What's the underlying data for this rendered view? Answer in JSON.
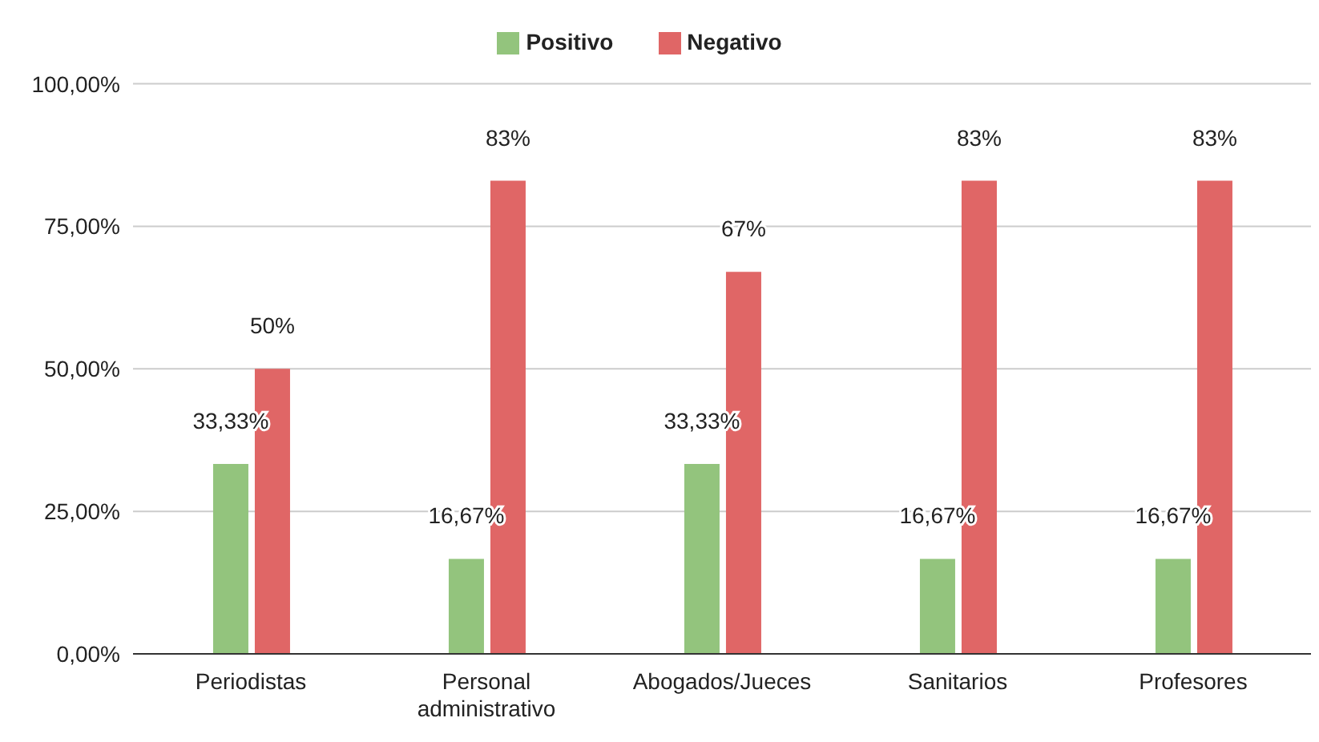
{
  "chart_data": {
    "type": "bar",
    "categories": [
      "Periodistas",
      "Personal administrativo",
      "Abogados/Jueces",
      "Sanitarios",
      "Profesores"
    ],
    "series": [
      {
        "name": "Positivo",
        "color": "#93c47d",
        "values": [
          33.33,
          16.67,
          33.33,
          16.67,
          16.67
        ],
        "value_labels": [
          "33,33%",
          "16,67%",
          "33,33%",
          "16,67%",
          "16,67%"
        ]
      },
      {
        "name": "Negativo",
        "color": "#e06666",
        "values": [
          50,
          83,
          67,
          83,
          83
        ],
        "value_labels": [
          "50%",
          "83%",
          "67%",
          "83%",
          "83%"
        ]
      }
    ],
    "ylim": [
      0,
      100
    ],
    "yticks": [
      {
        "value": 0,
        "label": "0,00%"
      },
      {
        "value": 25,
        "label": "25,00%"
      },
      {
        "value": 50,
        "label": "50,00%"
      },
      {
        "value": 75,
        "label": "75,00%"
      },
      {
        "value": 100,
        "label": "100,00%"
      }
    ],
    "grid": "y",
    "legend": "top"
  }
}
